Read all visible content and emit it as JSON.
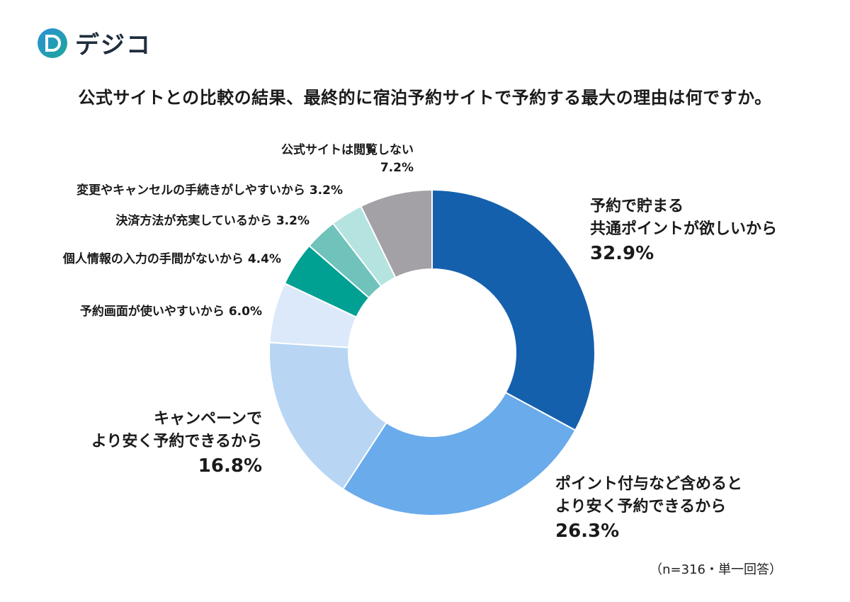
{
  "brand": {
    "name": "デジコ"
  },
  "title": "公式サイトとの比較の結果、最終的に宿泊予約サイトで予約する最大の理由は何ですか。",
  "note": "（n=316・単一回答）",
  "chart_data": {
    "type": "pie",
    "style": "donut",
    "slices": [
      {
        "label_lines": [
          "予約で貯まる",
          "共通ポイントが欲しいから"
        ],
        "pct_text": "32.9%",
        "value": 32.9,
        "color": "#1560ad"
      },
      {
        "label_lines": [
          "ポイント付与など含めると",
          "より安く予約できるから"
        ],
        "pct_text": "26.3%",
        "value": 26.3,
        "color": "#6aabeb"
      },
      {
        "label_lines": [
          "キャンペーンで",
          "より安く予約できるから"
        ],
        "pct_text": "16.8%",
        "value": 16.8,
        "color": "#b8d5f4"
      },
      {
        "label_lines": [
          "予約画面が使いやすいから"
        ],
        "pct_text": "6.0%",
        "value": 6.0,
        "color": "#dce9fa"
      },
      {
        "label_lines": [
          "個人情報の入力の手間がないから"
        ],
        "pct_text": "4.4%",
        "value": 4.4,
        "color": "#00a093"
      },
      {
        "label_lines": [
          "決済方法が充実しているから"
        ],
        "pct_text": "3.2%",
        "value": 3.2,
        "color": "#6fc3bb"
      },
      {
        "label_lines": [
          "変更やキャンセルの手続きがしやすいから"
        ],
        "pct_text": "3.2%",
        "value": 3.2,
        "color": "#b5e3e0"
      },
      {
        "label_lines": [
          "公式サイトは閲覧しない"
        ],
        "pct_text": "7.2%",
        "value": 7.2,
        "color": "#a3a1a6"
      }
    ]
  }
}
